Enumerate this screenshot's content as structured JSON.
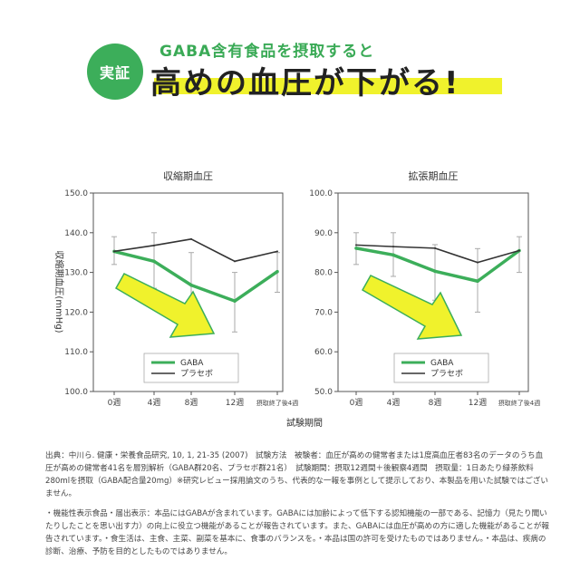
{
  "header": {
    "badge": "実証",
    "subtitle": "GABA含有食品を摂取すると",
    "title": "高めの血圧が下がる!"
  },
  "colors": {
    "gaba": "#3cae5a",
    "placebo": "#333333",
    "arrow": "#f0f22c",
    "badge": "#3cae5a"
  },
  "common": {
    "x_title": "試験期間",
    "y_title": "収縮期血圧(mmHg)"
  },
  "chart_data": [
    {
      "type": "line",
      "title": "収縮期血圧",
      "categories": [
        "0週",
        "4週",
        "8週",
        "12週",
        "摂取終了後4週"
      ],
      "ylim": [
        100,
        150
      ],
      "ticks": [
        "100.0",
        "110.0",
        "120.0",
        "130.0",
        "140.0",
        "150.0"
      ],
      "legend": "bottom-right",
      "series": [
        {
          "name": "GABA",
          "values": [
            135.3,
            132.8,
            126.8,
            122.8,
            130.2
          ]
        },
        {
          "name": "プラセボ",
          "values": [
            135.3,
            136.8,
            138.4,
            132.8,
            135.3
          ]
        }
      ]
    },
    {
      "type": "line",
      "title": "拡張期血圧",
      "categories": [
        "0週",
        "4週",
        "8週",
        "12週",
        "摂取終了後4週"
      ],
      "ylim": [
        50,
        100
      ],
      "ticks": [
        "50.0",
        "60.0",
        "70.0",
        "80.0",
        "90.0",
        "100.0"
      ],
      "legend": "bottom-right",
      "series": [
        {
          "name": "GABA",
          "values": [
            86.1,
            84.4,
            80.3,
            77.8,
            85.5
          ]
        },
        {
          "name": "プラセボ",
          "values": [
            86.9,
            86.5,
            86.1,
            82.5,
            85.5
          ]
        }
      ]
    }
  ],
  "notes": {
    "source": "出典：中川ら. 健康・栄養食品研究, 10, 1, 21-35 (2007)　試験方法　被験者：血圧が高めの健常者または1度高血圧者83名のデータのうち血圧が高めの健常者41名を層別解析（GABA群20名、プラセボ群21名）　試験期間：摂取12週間＋後観察4週間　摂取量：1日あたり緑茶飲料280mlを摂取（GABA配合量20mg）※研究レビュー採用論文のうち、代表的な一報を事例として提示しており、本製品を用いた試験ではございません。",
    "disclaimer": "・機能性表示食品・届出表示：本品にはGABAが含まれています。GABAには加齢によって低下する認知機能の一部である、記憶力（見たり聞いたりしたことを思い出す力）の向上に役立つ機能があることが報告されています。また、GABAには血圧が高めの方に適した機能があることが報告されています。・食生活は、主食、主菜、副菜を基本に、食事のバランスを。・本品は国の許可を受けたものではありません。・本品は、疾病の診断、治療、予防を目的としたものではありません。"
  }
}
